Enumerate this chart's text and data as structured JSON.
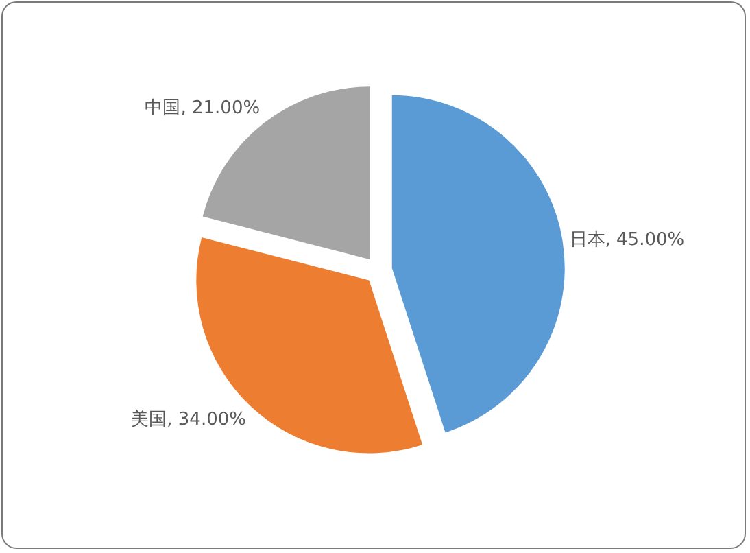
{
  "chart_data": {
    "type": "pie",
    "categories": [
      "日本",
      "美国",
      "中国"
    ],
    "values": [
      45,
      34,
      21
    ],
    "colors": [
      "#5b9bd5",
      "#ed7d31",
      "#a5a5a5"
    ],
    "value_labels": [
      "45.00%",
      "34.00%",
      "21.00%"
    ]
  }
}
